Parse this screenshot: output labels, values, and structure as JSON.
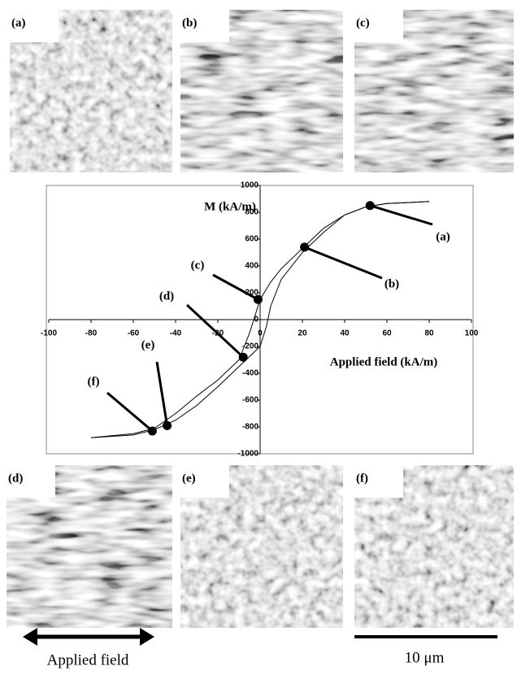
{
  "chart_data": {
    "type": "line",
    "xlabel": "Applied field (kA/m)",
    "ylabel": "M (kA/m)",
    "xlim": [
      -100,
      100
    ],
    "xticks": [
      -100,
      -80,
      -60,
      -40,
      -20,
      0,
      20,
      40,
      60,
      80,
      100
    ],
    "ylim": [
      -1000,
      1000
    ],
    "yticks": [
      -1000,
      -800,
      -600,
      -400,
      -200,
      0,
      200,
      400,
      600,
      800,
      1000
    ],
    "series": [
      {
        "color": "#000000",
        "x": [
          80,
          60,
          50,
          40,
          30,
          20,
          10,
          5,
          0,
          -2,
          -5,
          -10,
          -20,
          -30,
          -40,
          -50,
          -60,
          -80
        ],
        "values": [
          880,
          865,
          840,
          780,
          680,
          530,
          380,
          280,
          150,
          50,
          -100,
          -300,
          -450,
          -570,
          -700,
          -810,
          -850,
          -880
        ]
      },
      {
        "color": "#000000",
        "x": [
          -80,
          -60,
          -50,
          -40,
          -30,
          -20,
          -10,
          0,
          3,
          5,
          10,
          20,
          30,
          40,
          50,
          60,
          80
        ],
        "values": [
          -880,
          -860,
          -820,
          -750,
          -640,
          -500,
          -350,
          -200,
          -50,
          100,
          300,
          500,
          650,
          780,
          840,
          865,
          880
        ]
      }
    ],
    "points": {
      "x": [
        52,
        21,
        -1,
        -8,
        -44,
        -51
      ],
      "values": [
        850,
        540,
        150,
        -280,
        -790,
        -830
      ],
      "labels": [
        "(a)",
        "(b)",
        "(c)",
        "(d)",
        "(e)",
        "(f)"
      ]
    }
  },
  "panels": [
    {
      "label": "(a)"
    },
    {
      "label": "(b)"
    },
    {
      "label": "(c)"
    },
    {
      "label": "(d)"
    },
    {
      "label": "(e)"
    },
    {
      "label": "(f)"
    }
  ],
  "arrow_label": "Applied field",
  "scale_bar_label": "10 μm"
}
